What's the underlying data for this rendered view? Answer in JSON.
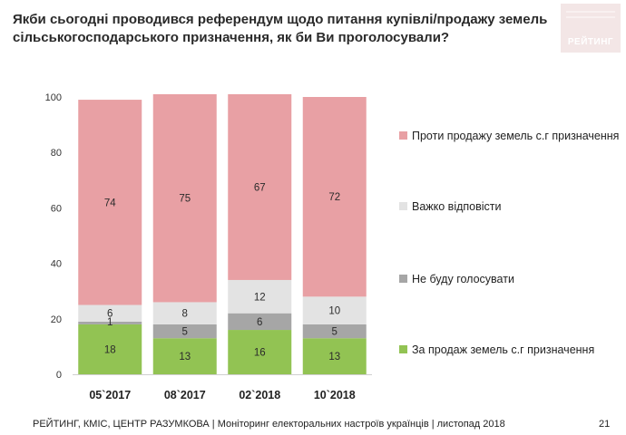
{
  "title": "Якби сьогодні проводився референдум щодо питання купівлі/продажу земель сільськогосподарського призначення, як би Ви проголосували?",
  "logo": {
    "text": "РЕЙТИНГ",
    "color": "#f3e6e6"
  },
  "chart_data": {
    "type": "bar",
    "stacked": true,
    "categories": [
      "05`2017",
      "08`2017",
      "02`2018",
      "10`2018"
    ],
    "series": [
      {
        "name": "За продаж земель с.г призначення",
        "color": "#92c353",
        "values": [
          18,
          13,
          16,
          13
        ]
      },
      {
        "name": "Не буду голосувати",
        "color": "#a6a6a6",
        "values": [
          1,
          5,
          6,
          5
        ]
      },
      {
        "name": "Важко відповісти",
        "color": "#e3e3e3",
        "values": [
          6,
          8,
          12,
          10
        ]
      },
      {
        "name": "Проти продажу земель с.г призначення",
        "color": "#e8a0a4",
        "values": [
          74,
          75,
          67,
          72
        ]
      }
    ],
    "ylim": [
      0,
      100
    ],
    "yticks": [
      0,
      20,
      40,
      60,
      80,
      100
    ],
    "title": "",
    "xlabel": "",
    "ylabel": "",
    "legend_position": "right"
  },
  "legend": [
    {
      "label": "Проти продажу земель с.г призначення",
      "color": "#e8a0a4"
    },
    {
      "label": "Важко відповісти",
      "color": "#e3e3e3"
    },
    {
      "label": "Не буду голосувати",
      "color": "#a6a6a6"
    },
    {
      "label": "За продаж земель с.г призначення",
      "color": "#92c353"
    }
  ],
  "footer": "РЕЙТИНГ, КМІС, ЦЕНТР РАЗУМКОВА |  Моніторинг електоральних настроїв українців | листопад 2018",
  "page_number": "21"
}
